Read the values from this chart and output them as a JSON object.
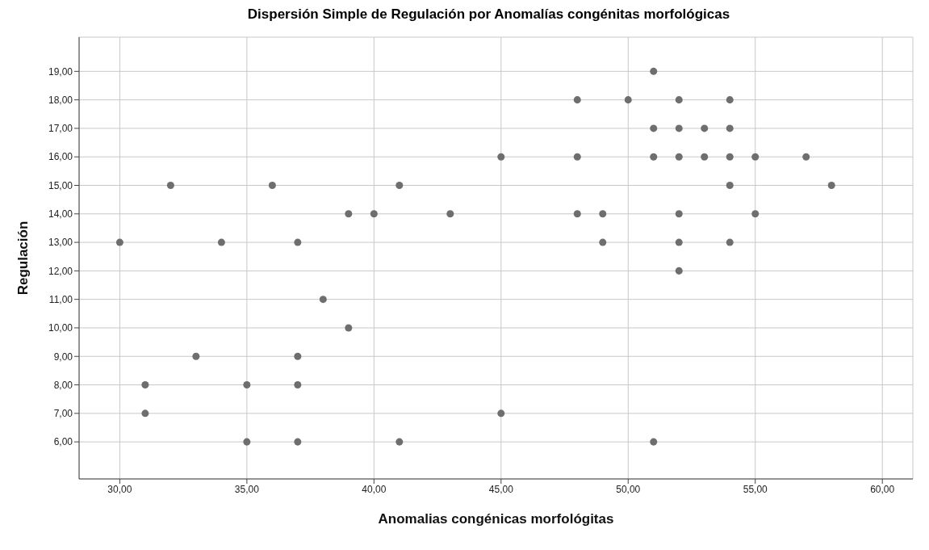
{
  "chart_data": {
    "type": "scatter",
    "title": "Dispersión Simple de Regulación por Anomalías congénitas morfológicas",
    "xlabel": "Anomalias congénicas morfológitas",
    "ylabel": "Regulación",
    "x": [
      51,
      48,
      50,
      52,
      54,
      51,
      52,
      53,
      54,
      45,
      48,
      51,
      52,
      53,
      54,
      55,
      57,
      32,
      36,
      41,
      54,
      58,
      39,
      40,
      43,
      48,
      49,
      52,
      55,
      30,
      34,
      37,
      49,
      52,
      54,
      52,
      38,
      39,
      33,
      37,
      31,
      35,
      37,
      31,
      45,
      35,
      37,
      41,
      51
    ],
    "values": [
      19,
      18,
      18,
      18,
      18,
      17,
      17,
      17,
      17,
      16,
      16,
      16,
      16,
      16,
      16,
      16,
      16,
      15,
      15,
      15,
      15,
      15,
      14,
      14,
      14,
      14,
      14,
      14,
      14,
      13,
      13,
      13,
      13,
      13,
      13,
      12,
      11,
      10,
      9,
      9,
      8,
      8,
      8,
      7,
      7,
      6,
      6,
      6,
      6
    ],
    "color": "#6e6e6e",
    "marker": "circle",
    "grid": true,
    "xlim": [
      28.4,
      61.2
    ],
    "ylim": [
      4.7,
      20.2
    ],
    "xticks": [
      {
        "value": 30,
        "label": "30,00"
      },
      {
        "value": 35,
        "label": "35,00"
      },
      {
        "value": 40,
        "label": "40,00"
      },
      {
        "value": 45,
        "label": "45,00"
      },
      {
        "value": 50,
        "label": "50,00"
      },
      {
        "value": 55,
        "label": "55,00"
      },
      {
        "value": 60,
        "label": "60,00"
      }
    ],
    "yticks": [
      {
        "value": 6,
        "label": "6,00"
      },
      {
        "value": 7,
        "label": "7,00"
      },
      {
        "value": 8,
        "label": "8,00"
      },
      {
        "value": 9,
        "label": "9,00"
      },
      {
        "value": 10,
        "label": "10,00"
      },
      {
        "value": 11,
        "label": "11,00"
      },
      {
        "value": 12,
        "label": "12,00"
      },
      {
        "value": 13,
        "label": "13,00"
      },
      {
        "value": 14,
        "label": "14,00"
      },
      {
        "value": 15,
        "label": "15,00"
      },
      {
        "value": 16,
        "label": "16,00"
      },
      {
        "value": 17,
        "label": "17,00"
      },
      {
        "value": 18,
        "label": "18,00"
      },
      {
        "value": 19,
        "label": "19,00"
      }
    ]
  }
}
